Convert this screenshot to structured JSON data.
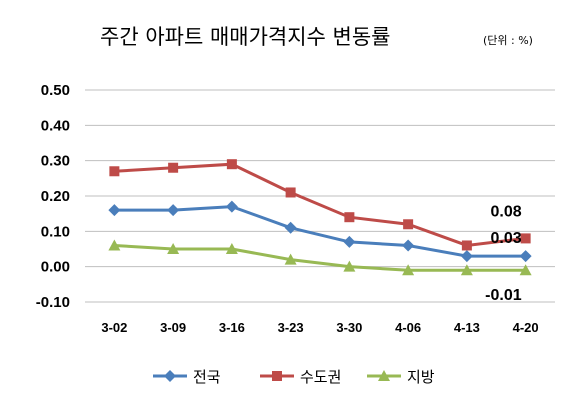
{
  "chart_data": {
    "type": "line",
    "title": "주간 아파트 매매가격지수 변동률",
    "unit": "(단위 : %)",
    "categories": [
      "3-02",
      "3-09",
      "3-16",
      "3-23",
      "3-30",
      "4-06",
      "4-13",
      "4-20"
    ],
    "ylim": [
      -0.1,
      0.5
    ],
    "yticks": [
      "0.50",
      "0.40",
      "0.30",
      "0.20",
      "0.10",
      "0.00",
      "-0.10"
    ],
    "grid": true,
    "legend_position": "bottom",
    "series": [
      {
        "name": "전국",
        "color": "#4a7ebb",
        "marker": "diamond",
        "values": [
          0.16,
          0.16,
          0.17,
          0.11,
          0.07,
          0.06,
          0.03,
          0.03
        ]
      },
      {
        "name": "수도권",
        "color": "#be4b48",
        "marker": "square",
        "values": [
          0.27,
          0.28,
          0.29,
          0.21,
          0.14,
          0.12,
          0.06,
          0.08
        ]
      },
      {
        "name": "지방",
        "color": "#98b954",
        "marker": "triangle",
        "values": [
          0.06,
          0.05,
          0.05,
          0.02,
          0.0,
          -0.01,
          -0.01,
          -0.01
        ]
      }
    ],
    "data_labels": [
      {
        "text": "0.08",
        "series": 1,
        "index": 7
      },
      {
        "text": "0.03",
        "series": 0,
        "index": 7
      },
      {
        "text": "-0.01",
        "series": 2,
        "index": 7
      }
    ]
  }
}
